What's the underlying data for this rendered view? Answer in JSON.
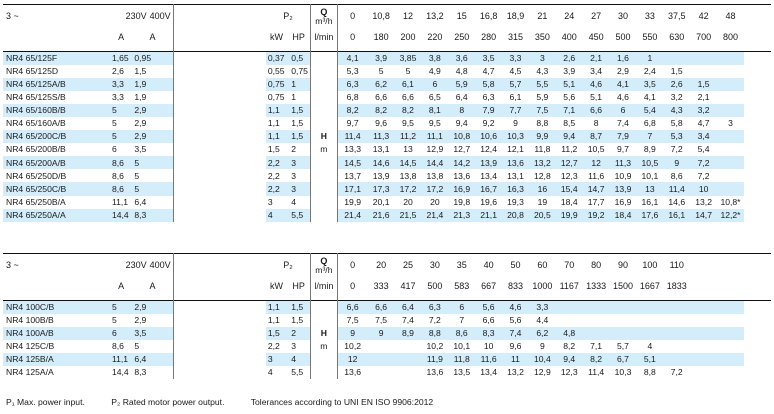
{
  "t1": {
    "phase": "3 ~",
    "voltages": [
      "230V",
      "400V"
    ],
    "amp_units": [
      "A",
      "A"
    ],
    "p2_label": "P₂",
    "power_units": [
      "kW",
      "HP"
    ],
    "q_label": "Q",
    "q_unit": "m³/h",
    "q_alt_unit": "l/min",
    "h_label": "H",
    "h_unit": "m",
    "q_m3h": [
      "0",
      "10,8",
      "12",
      "13,2",
      "15",
      "16,8",
      "18,9",
      "21",
      "24",
      "27",
      "30",
      "33",
      "37,5",
      "42",
      "48"
    ],
    "q_lmin": [
      "0",
      "180",
      "200",
      "220",
      "250",
      "280",
      "315",
      "350",
      "400",
      "450",
      "500",
      "550",
      "630",
      "700",
      "800"
    ],
    "rows": [
      {
        "name": "NR4 65/125F",
        "a230": "1,65",
        "a400": "0,95",
        "kw": "0,37",
        "hp": "0,5",
        "heads": [
          "4,1",
          "3,9",
          "3,85",
          "3,8",
          "3,6",
          "3,5",
          "3,3",
          "3",
          "2,6",
          "2,1",
          "1,6",
          "1",
          "",
          "",
          ""
        ]
      },
      {
        "name": "NR4 65/125D",
        "a230": "2,6",
        "a400": "1,5",
        "kw": "0,55",
        "hp": "0,75",
        "heads": [
          "5,3",
          "5",
          "5",
          "4,9",
          "4,8",
          "4,7",
          "4,5",
          "4,3",
          "3,9",
          "3,4",
          "2,9",
          "2,4",
          "1,5",
          "",
          ""
        ]
      },
      {
        "name": "NR4 65/125A/B",
        "a230": "3,3",
        "a400": "1,9",
        "kw": "0,75",
        "hp": "1",
        "heads": [
          "6,3",
          "6,2",
          "6,1",
          "6",
          "5,9",
          "5,8",
          "5,7",
          "5,5",
          "5,1",
          "4,6",
          "4,1",
          "3,5",
          "2,6",
          "1,5",
          ""
        ]
      },
      {
        "name": "NR4 65/125S/B",
        "a230": "3,3",
        "a400": "1,9",
        "kw": "0,75",
        "hp": "1",
        "heads": [
          "6,8",
          "6,6",
          "6,6",
          "6,5",
          "6,4",
          "6,3",
          "6,1",
          "5,9",
          "5,6",
          "5,1",
          "4,6",
          "4,1",
          "3,2",
          "2,1",
          ""
        ]
      },
      {
        "name": "NR4 65/160B/B",
        "a230": "5",
        "a400": "2,9",
        "kw": "1,1",
        "hp": "1,5",
        "heads": [
          "8,2",
          "8,2",
          "8,2",
          "8,1",
          "8",
          "7,9",
          "7,7",
          "7,5",
          "7,1",
          "6,6",
          "6",
          "5,4",
          "4,3",
          "3,2",
          ""
        ]
      },
      {
        "name": "NR4 65/160A/B",
        "a230": "5",
        "a400": "2,9",
        "kw": "1,1",
        "hp": "1,5",
        "heads": [
          "9,7",
          "9,6",
          "9,5",
          "9,5",
          "9,4",
          "9,2",
          "9",
          "8,8",
          "8,5",
          "8",
          "7,4",
          "6,8",
          "5,8",
          "4,7",
          "3"
        ]
      },
      {
        "name": "NR4 65/200C/B",
        "a230": "5",
        "a400": "2,9",
        "kw": "1,1",
        "hp": "1,5",
        "heads": [
          "11,4",
          "11,3",
          "11,2",
          "11,1",
          "10,8",
          "10,6",
          "10,3",
          "9,9",
          "9,4",
          "8,7",
          "7,9",
          "7",
          "5,3",
          "3,4",
          ""
        ]
      },
      {
        "name": "NR4 65/200B/B",
        "a230": "6",
        "a400": "3,5",
        "kw": "1,5",
        "hp": "2",
        "heads": [
          "13,3",
          "13,1",
          "13",
          "12,9",
          "12,7",
          "12,4",
          "12,1",
          "11,8",
          "11,2",
          "10,5",
          "9,7",
          "8,9",
          "7,2",
          "5,4",
          ""
        ]
      },
      {
        "name": "NR4 65/200A/B",
        "a230": "8,6",
        "a400": "5",
        "kw": "2,2",
        "hp": "3",
        "heads": [
          "14,5",
          "14,6",
          "14,5",
          "14,4",
          "14,2",
          "13,9",
          "13,6",
          "13,2",
          "12,7",
          "12",
          "11,3",
          "10,5",
          "9",
          "7,2",
          ""
        ]
      },
      {
        "name": "NR4 65/250D/B",
        "a230": "8,6",
        "a400": "5",
        "kw": "2,2",
        "hp": "3",
        "heads": [
          "13,7",
          "13,9",
          "13,8",
          "13,8",
          "13,6",
          "13,4",
          "13,1",
          "12,8",
          "12,3",
          "11,6",
          "10,9",
          "10,1",
          "8,6",
          "7,2",
          ""
        ]
      },
      {
        "name": "NR4 65/250C/B",
        "a230": "8,6",
        "a400": "5",
        "kw": "2,2",
        "hp": "3",
        "heads": [
          "17,1",
          "17,3",
          "17,2",
          "17,2",
          "16,9",
          "16,7",
          "16,3",
          "16",
          "15,4",
          "14,7",
          "13,9",
          "13",
          "11,4",
          "10",
          ""
        ]
      },
      {
        "name": "NR4 65/250B/A",
        "a230": "11,1",
        "a400": "6,4",
        "kw": "3",
        "hp": "4",
        "heads": [
          "19,9",
          "20,1",
          "20",
          "20",
          "19,8",
          "19,6",
          "19,3",
          "19",
          "18,4",
          "17,7",
          "16,9",
          "16,1",
          "14,6",
          "13,2",
          "10,8*"
        ]
      },
      {
        "name": "NR4 65/250A/A",
        "a230": "14,4",
        "a400": "8,3",
        "kw": "4",
        "hp": "5,5",
        "heads": [
          "21,4",
          "21,6",
          "21,5",
          "21,4",
          "21,3",
          "21,1",
          "20,8",
          "20,5",
          "19,9",
          "19,2",
          "18,4",
          "17,6",
          "16,1",
          "14,7",
          "12,2*"
        ]
      }
    ]
  },
  "t2": {
    "phase": "3 ~",
    "voltages": [
      "230V",
      "400V"
    ],
    "amp_units": [
      "A",
      "A"
    ],
    "p2_label": "P₂",
    "power_units": [
      "kW",
      "HP"
    ],
    "q_label": "Q",
    "q_unit": "m³/h",
    "q_alt_unit": "l/min",
    "h_label": "H",
    "h_unit": "m",
    "q_m3h": [
      "0",
      "20",
      "25",
      "30",
      "35",
      "40",
      "50",
      "60",
      "70",
      "80",
      "90",
      "100",
      "110",
      "",
      ""
    ],
    "q_lmin": [
      "0",
      "333",
      "417",
      "500",
      "583",
      "667",
      "833",
      "1000",
      "1167",
      "1333",
      "1500",
      "1667",
      "1833",
      "",
      ""
    ],
    "rows": [
      {
        "name": "NR4 100C/B",
        "a230": "5",
        "a400": "2,9",
        "kw": "1,1",
        "hp": "1,5",
        "heads": [
          "6,6",
          "6,6",
          "6,4",
          "6,3",
          "6",
          "5,6",
          "4,6",
          "3,3",
          "",
          "",
          "",
          "",
          "",
          "",
          ""
        ]
      },
      {
        "name": "NR4 100B/B",
        "a230": "5",
        "a400": "2,9",
        "kw": "1,1",
        "hp": "1,5",
        "heads": [
          "7,5",
          "7,5",
          "7,4",
          "7,2",
          "7",
          "6,6",
          "5,6",
          "4,4",
          "",
          "",
          "",
          "",
          "",
          "",
          ""
        ]
      },
      {
        "name": "NR4 100A/B",
        "a230": "6",
        "a400": "3,5",
        "kw": "1,5",
        "hp": "2",
        "heads": [
          "9",
          "9",
          "8,9",
          "8,8",
          "8,6",
          "8,3",
          "7,4",
          "6,2",
          "4,8",
          "",
          "",
          "",
          "",
          "",
          ""
        ]
      },
      {
        "name": "NR4 125C/B",
        "a230": "8,6",
        "a400": "5",
        "kw": "2,2",
        "hp": "3",
        "heads": [
          "10,2",
          "",
          "",
          "10,2",
          "10,1",
          "10",
          "9,6",
          "9",
          "8,2",
          "7,1",
          "5,7",
          "4",
          "",
          "",
          ""
        ]
      },
      {
        "name": "NR4 125B/A",
        "a230": "11,1",
        "a400": "6,4",
        "kw": "3",
        "hp": "4",
        "heads": [
          "12",
          "",
          "",
          "11,9",
          "11,8",
          "11,6",
          "11",
          "10,4",
          "9,4",
          "8,2",
          "6,7",
          "5,1",
          "",
          "",
          ""
        ]
      },
      {
        "name": "NR4 125A/A",
        "a230": "14,4",
        "a400": "8,3",
        "kw": "4",
        "hp": "5,5",
        "heads": [
          "13,6",
          "",
          "",
          "13,6",
          "13,5",
          "13,4",
          "13,2",
          "12,9",
          "12,3",
          "11,4",
          "10,3",
          "8,8",
          "7,2",
          "",
          ""
        ]
      }
    ]
  },
  "footnote": {
    "p1": "P₁ Max. power input.",
    "p2": "P₂ Rated motor power output.",
    "tolerance": "Tolerances according to UNI EN ISO 9906:2012"
  }
}
